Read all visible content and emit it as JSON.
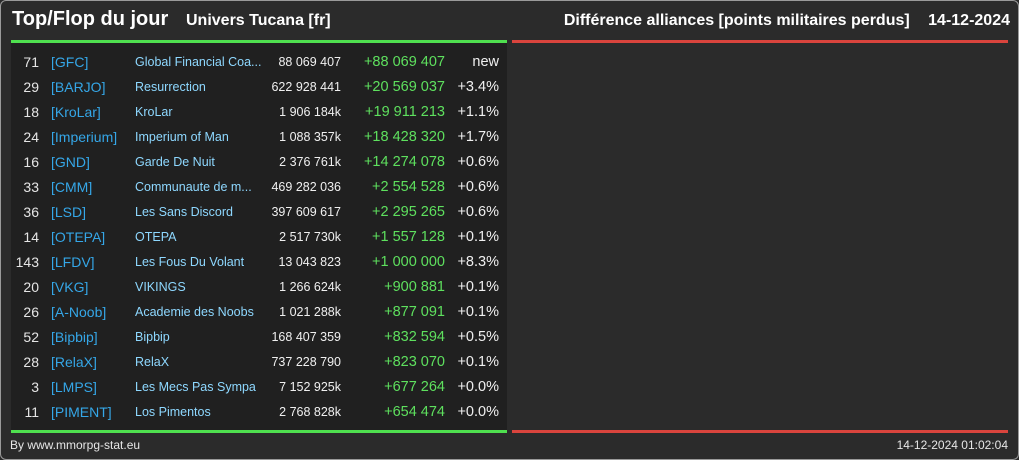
{
  "header": {
    "title": "Top/Flop du jour",
    "universe": "Univers Tucana [fr]",
    "ranking_label": "Différence alliances [points militaires perdus]",
    "date": "14-12-2024"
  },
  "colors": {
    "background": "#2b2b2b",
    "top_accent": "#4fe04f",
    "flop_accent": "#d9443d",
    "tag": "#35a7e8",
    "name": "#8ed8ff",
    "delta": "#5ee05e"
  },
  "top_rows": [
    {
      "rank": "71",
      "tag": "[GFC]",
      "name": "Global Financial Coa...",
      "points": "88 069 407",
      "delta": "+88 069 407",
      "pct": "new"
    },
    {
      "rank": "29",
      "tag": "[BARJO]",
      "name": "Resurrection",
      "points": "622 928 441",
      "delta": "+20 569 037",
      "pct": "+3.4%"
    },
    {
      "rank": "18",
      "tag": "[KroLar]",
      "name": "KroLar",
      "points": "1 906 184k",
      "delta": "+19 911 213",
      "pct": "+1.1%"
    },
    {
      "rank": "24",
      "tag": "[Imperium]",
      "name": "Imperium of Man",
      "points": "1 088 357k",
      "delta": "+18 428 320",
      "pct": "+1.7%"
    },
    {
      "rank": "16",
      "tag": "[GND]",
      "name": "Garde De Nuit",
      "points": "2 376 761k",
      "delta": "+14 274 078",
      "pct": "+0.6%"
    },
    {
      "rank": "33",
      "tag": "[CMM]",
      "name": "Communaute de m...",
      "points": "469 282 036",
      "delta": "+2 554 528",
      "pct": "+0.6%"
    },
    {
      "rank": "36",
      "tag": "[LSD]",
      "name": "Les Sans Discord",
      "points": "397 609 617",
      "delta": "+2 295 265",
      "pct": "+0.6%"
    },
    {
      "rank": "14",
      "tag": "[OTEPA]",
      "name": "OTEPA",
      "points": "2 517 730k",
      "delta": "+1 557 128",
      "pct": "+0.1%"
    },
    {
      "rank": "143",
      "tag": "[LFDV]",
      "name": "Les Fous Du Volant",
      "points": "13 043 823",
      "delta": "+1 000 000",
      "pct": "+8.3%"
    },
    {
      "rank": "20",
      "tag": "[VKG]",
      "name": "VIKINGS",
      "points": "1 266 624k",
      "delta": "+900 881",
      "pct": "+0.1%"
    },
    {
      "rank": "26",
      "tag": "[A-Noob]",
      "name": "Academie des Noobs",
      "points": "1 021 288k",
      "delta": "+877 091",
      "pct": "+0.1%"
    },
    {
      "rank": "52",
      "tag": "[Bipbip]",
      "name": "Bipbip",
      "points": "168 407 359",
      "delta": "+832 594",
      "pct": "+0.5%"
    },
    {
      "rank": "28",
      "tag": "[RelaX]",
      "name": "RelaX",
      "points": "737 228 790",
      "delta": "+823 070",
      "pct": "+0.1%"
    },
    {
      "rank": "3",
      "tag": "[LMPS]",
      "name": "Les Mecs Pas Sympa",
      "points": "7 152 925k",
      "delta": "+677 264",
      "pct": "+0.0%"
    },
    {
      "rank": "11",
      "tag": "[PIMENT]",
      "name": "Los Pimentos",
      "points": "2 768 828k",
      "delta": "+654 474",
      "pct": "+0.0%"
    }
  ],
  "footer": {
    "source": "By www.mmorpg-stat.eu",
    "generated": "14-12-2024 01:02:04"
  }
}
